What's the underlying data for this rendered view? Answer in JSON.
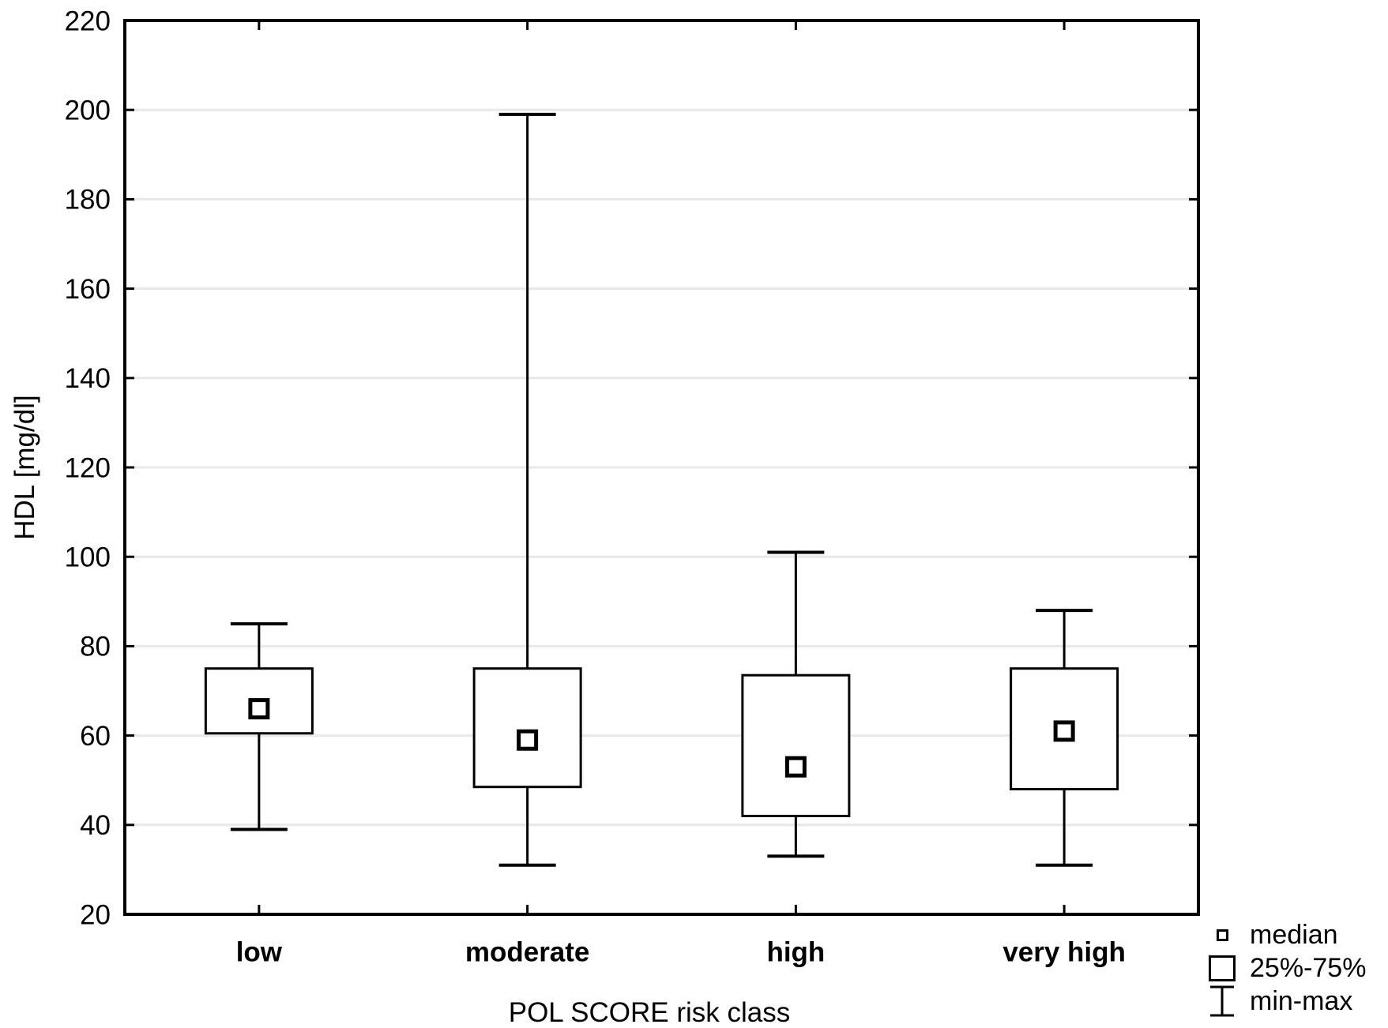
{
  "chart_data": {
    "type": "boxplot",
    "title": "",
    "xlabel": "POL SCORE risk class",
    "ylabel": "HDL [mg/dl]",
    "ylim": [
      20,
      220
    ],
    "yticks": [
      20,
      40,
      60,
      80,
      100,
      120,
      140,
      160,
      180,
      200,
      220
    ],
    "grid": "horizontal",
    "categories": [
      "low",
      "moderate",
      "high",
      "very high"
    ],
    "series": [
      {
        "category": "low",
        "min": 39,
        "q1": 60.5,
        "median": 66,
        "q3": 75,
        "max": 85
      },
      {
        "category": "moderate",
        "min": 31,
        "q1": 48.5,
        "median": 59,
        "q3": 75,
        "max": 199
      },
      {
        "category": "high",
        "min": 33,
        "q1": 42,
        "median": 53,
        "q3": 73.5,
        "max": 101
      },
      {
        "category": "very high",
        "min": 31,
        "q1": 48,
        "median": 61,
        "q3": 75,
        "max": 88
      }
    ],
    "legend": {
      "position": "bottom-right",
      "items": [
        {
          "glyph": "small-square",
          "label": "median"
        },
        {
          "glyph": "box",
          "label": "25%-75%"
        },
        {
          "glyph": "whisker",
          "label": "min-max"
        }
      ]
    },
    "colors": {
      "line": "#000000",
      "grid": "#e8e8e8",
      "background": "#ffffff",
      "box_fill": "#ffffff"
    }
  }
}
